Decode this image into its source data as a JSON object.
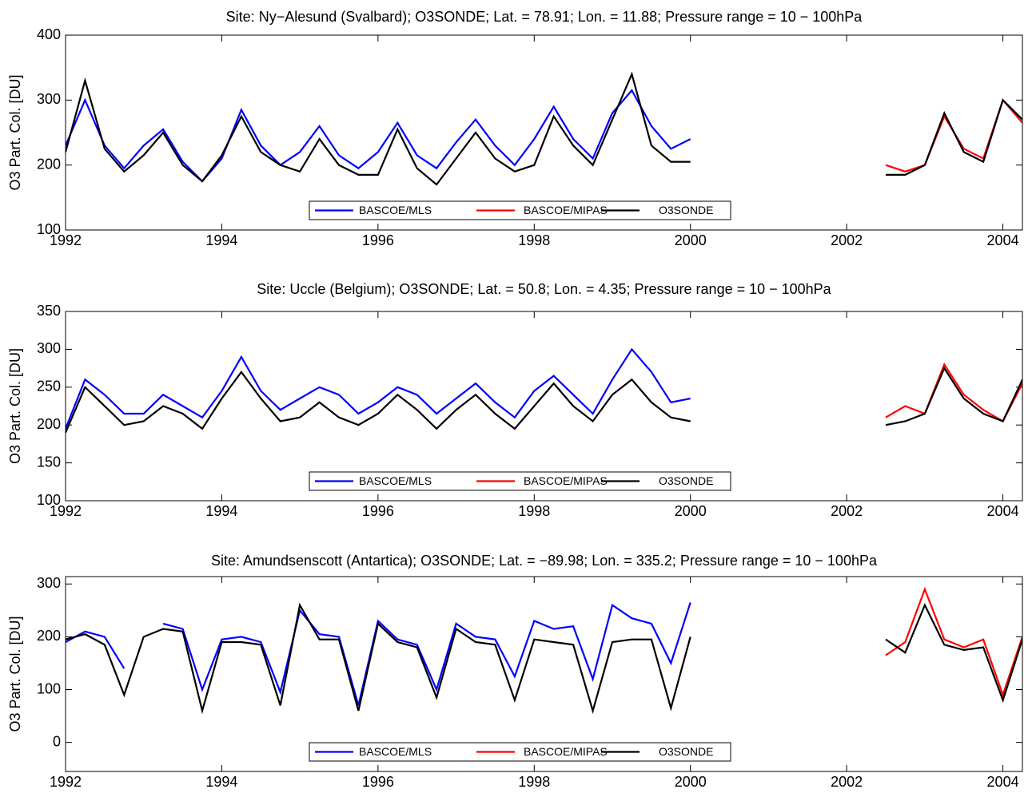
{
  "chart_data": [
    {
      "type": "line",
      "title": "Site: Ny−Alesund (Svalbard); O3SONDE; Lat. = 78.91; Lon. = 11.88; Pressure range = 10 − 100hPa",
      "y_label": "O3 Part. Col. [DU]",
      "xlim": [
        1992,
        2004.25
      ],
      "xticks": [
        1992,
        1994,
        1996,
        1998,
        2000,
        2002,
        2004
      ],
      "ylim": [
        100,
        400
      ],
      "yticks": [
        100,
        200,
        300,
        400
      ],
      "legend": "bottom",
      "series": [
        {
          "name": "BASCOE/MLS",
          "color": "#0000ff",
          "x": [
            1992,
            1992.25,
            1992.5,
            1992.75,
            1993,
            1993.25,
            1993.5,
            1993.75,
            1994,
            1994.25,
            1994.5,
            1994.75,
            1995,
            1995.25,
            1995.5,
            1995.75,
            1996,
            1996.25,
            1996.5,
            1996.75,
            1997,
            1997.25,
            1997.5,
            1997.75,
            1998,
            1998.25,
            1998.5,
            1998.75,
            1999,
            1999.25,
            1999.5,
            1999.75,
            2000
          ],
          "values": [
            230,
            300,
            230,
            195,
            230,
            255,
            205,
            175,
            210,
            285,
            230,
            200,
            220,
            260,
            215,
            195,
            220,
            265,
            215,
            195,
            235,
            270,
            230,
            200,
            240,
            290,
            240,
            210,
            280,
            315,
            260,
            225,
            240
          ]
        },
        {
          "name": "BASCOE/MIPAS",
          "color": "#ff0000",
          "x": [
            2002.5,
            2002.75,
            2003,
            2003.25,
            2003.5,
            2003.75,
            2004,
            2004.25
          ],
          "values": [
            200,
            190,
            200,
            275,
            225,
            210,
            300,
            265
          ]
        },
        {
          "name": "O3SONDE",
          "color": "#000000",
          "x": [
            1992,
            1992.25,
            1992.5,
            1992.75,
            1993,
            1993.25,
            1993.5,
            1993.75,
            1994,
            1994.25,
            1994.5,
            1994.75,
            1995,
            1995.25,
            1995.5,
            1995.75,
            1996,
            1996.25,
            1996.5,
            1996.75,
            1997,
            1997.25,
            1997.5,
            1997.75,
            1998,
            1998.25,
            1998.5,
            1998.75,
            1999,
            1999.25,
            1999.5,
            1999.75,
            2000,
            null,
            2002.5,
            2002.75,
            2003,
            2003.25,
            2003.5,
            2003.75,
            2004,
            2004.25
          ],
          "values": [
            220,
            330,
            225,
            190,
            215,
            250,
            200,
            175,
            215,
            275,
            220,
            200,
            190,
            240,
            200,
            185,
            185,
            255,
            195,
            170,
            210,
            250,
            210,
            190,
            200,
            275,
            230,
            200,
            270,
            340,
            230,
            205,
            205,
            null,
            185,
            185,
            200,
            280,
            220,
            205,
            300,
            270
          ]
        }
      ]
    },
    {
      "type": "line",
      "title": "Site: Uccle (Belgium); O3SONDE; Lat. = 50.8; Lon. = 4.35; Pressure range = 10 − 100hPa",
      "y_label": "O3 Part. Col. [DU]",
      "xlim": [
        1992,
        2004.25
      ],
      "xticks": [
        1992,
        1994,
        1996,
        1998,
        2000,
        2002,
        2004
      ],
      "ylim": [
        100,
        350
      ],
      "yticks": [
        100,
        150,
        200,
        250,
        300,
        350
      ],
      "legend": "bottom",
      "series": [
        {
          "name": "BASCOE/MLS",
          "color": "#0000ff",
          "x": [
            1992,
            1992.25,
            1992.5,
            1992.75,
            1993,
            1993.25,
            1993.5,
            1993.75,
            1994,
            1994.25,
            1994.5,
            1994.75,
            1995,
            1995.25,
            1995.5,
            1995.75,
            1996,
            1996.25,
            1996.5,
            1996.75,
            1997,
            1997.25,
            1997.5,
            1997.75,
            1998,
            1998.25,
            1998.5,
            1998.75,
            1999,
            1999.25,
            1999.5,
            1999.75,
            2000
          ],
          "values": [
            195,
            260,
            240,
            215,
            215,
            240,
            225,
            210,
            245,
            290,
            245,
            220,
            235,
            250,
            240,
            215,
            230,
            250,
            240,
            215,
            235,
            255,
            230,
            210,
            245,
            265,
            240,
            215,
            260,
            300,
            270,
            230,
            235
          ]
        },
        {
          "name": "BASCOE/MIPAS",
          "color": "#ff0000",
          "x": [
            2002.5,
            2002.75,
            2003,
            2003.25,
            2003.5,
            2003.75,
            2004,
            2004.25
          ],
          "values": [
            210,
            225,
            215,
            280,
            240,
            220,
            205,
            255
          ]
        },
        {
          "name": "O3SONDE",
          "color": "#000000",
          "x": [
            1992,
            1992.25,
            1992.5,
            1992.75,
            1993,
            1993.25,
            1993.5,
            1993.75,
            1994,
            1994.25,
            1994.5,
            1994.75,
            1995,
            1995.25,
            1995.5,
            1995.75,
            1996,
            1996.25,
            1996.5,
            1996.75,
            1997,
            1997.25,
            1997.5,
            1997.75,
            1998,
            1998.25,
            1998.5,
            1998.75,
            1999,
            1999.25,
            1999.5,
            1999.75,
            2000,
            null,
            2002.5,
            2002.75,
            2003,
            2003.25,
            2003.5,
            2003.75,
            2004,
            2004.25
          ],
          "values": [
            190,
            250,
            225,
            200,
            205,
            225,
            215,
            195,
            235,
            270,
            235,
            205,
            210,
            230,
            210,
            200,
            215,
            240,
            220,
            195,
            220,
            240,
            215,
            195,
            225,
            255,
            225,
            205,
            240,
            260,
            230,
            210,
            205,
            null,
            200,
            205,
            215,
            275,
            235,
            215,
            205,
            260
          ]
        }
      ]
    },
    {
      "type": "line",
      "title": "Site: Amundsenscott (Antartica); O3SONDE; Lat. = −89.98; Lon. = 335.2; Pressure range = 10 − 100hPa",
      "y_label": "O3 Part. Col. [DU]",
      "xlim": [
        1992,
        2004.25
      ],
      "xticks": [
        1992,
        1994,
        1996,
        1998,
        2000,
        2002,
        2004
      ],
      "ylim": [
        -55,
        314
      ],
      "yticks": [
        0,
        100,
        200,
        300
      ],
      "legend": "bottom",
      "series": [
        {
          "name": "BASCOE/MLS",
          "color": "#0000ff",
          "x": [
            1992,
            1992.25,
            1992.5,
            1992.75,
            1993,
            1993.25,
            1993.5,
            1993.75,
            1994,
            1994.25,
            1994.5,
            1994.75,
            1995,
            1995.25,
            1995.5,
            1995.75,
            1996,
            1996.25,
            1996.5,
            1996.75,
            1997,
            1997.25,
            1997.5,
            1997.75,
            1998,
            1998.25,
            1998.5,
            1998.75,
            1999,
            1999.25,
            1999.5,
            1999.75,
            2000
          ],
          "values": [
            190,
            210,
            200,
            140,
            null,
            225,
            215,
            100,
            195,
            200,
            190,
            95,
            250,
            205,
            200,
            70,
            230,
            195,
            185,
            100,
            225,
            200,
            195,
            125,
            230,
            215,
            220,
            120,
            260,
            235,
            225,
            150,
            265
          ]
        },
        {
          "name": "BASCOE/MIPAS",
          "color": "#ff0000",
          "x": [
            2002.5,
            2002.75,
            2003,
            2003.25,
            2003.5,
            2003.75,
            2004,
            2004.25
          ],
          "values": [
            165,
            190,
            290,
            195,
            180,
            195,
            90,
            200
          ]
        },
        {
          "name": "O3SONDE",
          "color": "#000000",
          "x": [
            1992,
            1992.25,
            1992.5,
            1992.75,
            1993,
            1993.25,
            1993.5,
            1993.75,
            1994,
            1994.25,
            1994.5,
            1994.75,
            1995,
            1995.25,
            1995.5,
            1995.75,
            1996,
            1996.25,
            1996.5,
            1996.75,
            1997,
            1997.25,
            1997.5,
            1997.75,
            1998,
            1998.25,
            1998.5,
            1998.75,
            1999,
            1999.25,
            1999.5,
            1999.75,
            2000,
            null,
            2002.5,
            2002.75,
            2003,
            2003.25,
            2003.5,
            2003.75,
            2004,
            2004.25
          ],
          "values": [
            195,
            205,
            185,
            90,
            200,
            215,
            210,
            60,
            190,
            190,
            185,
            70,
            260,
            195,
            195,
            60,
            225,
            190,
            180,
            85,
            215,
            190,
            185,
            80,
            195,
            190,
            185,
            60,
            190,
            195,
            195,
            65,
            200,
            null,
            195,
            170,
            260,
            185,
            175,
            180,
            80,
            195
          ]
        }
      ]
    }
  ]
}
